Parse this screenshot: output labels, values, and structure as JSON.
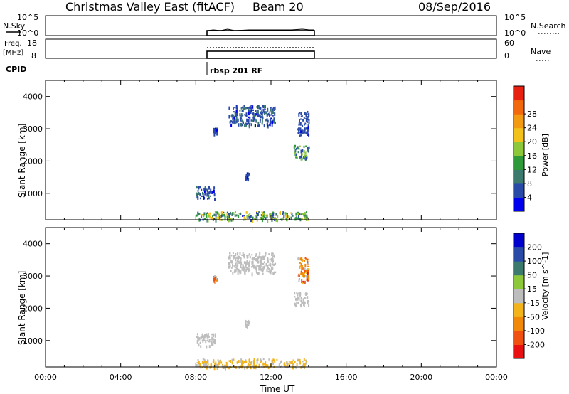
{
  "header": {
    "title": "Christmas Valley East (fitACF)",
    "beam": "Beam 20",
    "date": "08/Sep/2016"
  },
  "strip_plots": {
    "nsky_label": "N.Sky",
    "nsky_ticks": [
      "10^5",
      "10^0"
    ],
    "nsky_right_ticks": [
      "10^5",
      "10^0"
    ],
    "nsearch_label": "N.Search",
    "freq_label": [
      "Freq.",
      "[MHz]"
    ],
    "freq_ticks": [
      "18",
      "8"
    ],
    "nave_ticks": [
      "60",
      "0"
    ],
    "nave_label": "Nave",
    "cpid_label": "CPID",
    "cpid_value": "rbsp 201 RF"
  },
  "x_axis": {
    "label": "Time UT",
    "ticks": [
      "00:00",
      "04:00",
      "08:00",
      "12:00",
      "16:00",
      "20:00",
      "00:00"
    ]
  },
  "colors": {
    "power": [
      "#0000ee",
      "#2a4aa8",
      "#3c7a6e",
      "#2e9a3a",
      "#8cc83a",
      "#f2c21a",
      "#f29a12",
      "#f2680c",
      "#e82010"
    ],
    "velocity": [
      "#e81010",
      "#f05010",
      "#f2880a",
      "#f2b41a",
      "#bdbdbd",
      "#8cc83a",
      "#3c7a6e",
      "#2a4aa8",
      "#0000cc"
    ]
  },
  "chart_data": [
    {
      "type": "heatmap",
      "title": "Power",
      "xlabel": "Time UT",
      "ylabel": "Slant Range [km]",
      "xlim": [
        0,
        24
      ],
      "ylim": [
        180,
        4500
      ],
      "yticks": [
        1000,
        2000,
        3000,
        4000
      ],
      "colorbar": {
        "label": "Power [dB]",
        "ticks": [
          "4",
          "8",
          "12",
          "16",
          "20",
          "24",
          "28"
        ],
        "range": [
          0,
          30
        ]
      },
      "observation_window_hours": [
        8.0,
        14.0
      ],
      "echo_regions": [
        {
          "t": [
            8.0,
            14.0
          ],
          "range_km": [
            180,
            450
          ],
          "power_db": [
            3,
            20
          ]
        },
        {
          "t": [
            8.0,
            9.0
          ],
          "range_km": [
            850,
            1250
          ],
          "power_db": [
            3,
            8
          ]
        },
        {
          "t": [
            8.9,
            9.1
          ],
          "range_km": [
            2850,
            3050
          ],
          "power_db": [
            3,
            6
          ]
        },
        {
          "t": [
            9.7,
            12.2
          ],
          "range_km": [
            3100,
            3750
          ],
          "power_db": [
            3,
            8
          ]
        },
        {
          "t": [
            10.6,
            10.8
          ],
          "range_km": [
            1450,
            1650
          ],
          "power_db": [
            3,
            6
          ]
        },
        {
          "t": [
            13.2,
            14.0
          ],
          "range_km": [
            2100,
            2500
          ],
          "power_db": [
            4,
            16
          ]
        },
        {
          "t": [
            13.4,
            14.0
          ],
          "range_km": [
            2800,
            3600
          ],
          "power_db": [
            3,
            6
          ]
        }
      ]
    },
    {
      "type": "heatmap",
      "title": "Velocity",
      "xlabel": "Time UT",
      "ylabel": "Slant Range [km]",
      "xlim": [
        0,
        24
      ],
      "ylim": [
        180,
        4500
      ],
      "yticks": [
        1000,
        2000,
        3000,
        4000
      ],
      "colorbar": {
        "label": "Velocity [m s^-1]",
        "ticks": [
          "-200",
          "-100",
          "-50",
          "-15",
          "15",
          "50",
          "100",
          "200"
        ],
        "range": [
          -250,
          250
        ]
      },
      "observation_window_hours": [
        8.0,
        14.0
      ],
      "echo_regions": [
        {
          "t": [
            8.0,
            14.0
          ],
          "range_km": [
            180,
            450
          ],
          "velocity_ms": [
            -50,
            -15
          ]
        },
        {
          "t": [
            8.0,
            9.0
          ],
          "range_km": [
            850,
            1250
          ],
          "velocity_ms": [
            -15,
            15
          ]
        },
        {
          "t": [
            8.9,
            9.1
          ],
          "range_km": [
            2850,
            3050
          ],
          "velocity_ms": [
            -200,
            15
          ]
        },
        {
          "t": [
            9.7,
            12.2
          ],
          "range_km": [
            3100,
            3750
          ],
          "velocity_ms": [
            -15,
            15
          ]
        },
        {
          "t": [
            10.6,
            10.8
          ],
          "range_km": [
            1450,
            1650
          ],
          "velocity_ms": [
            -15,
            15
          ]
        },
        {
          "t": [
            13.2,
            14.0
          ],
          "range_km": [
            2100,
            2500
          ],
          "velocity_ms": [
            -15,
            15
          ]
        },
        {
          "t": [
            13.4,
            14.0
          ],
          "range_km": [
            2800,
            3600
          ],
          "velocity_ms": [
            -200,
            15
          ]
        }
      ]
    }
  ]
}
